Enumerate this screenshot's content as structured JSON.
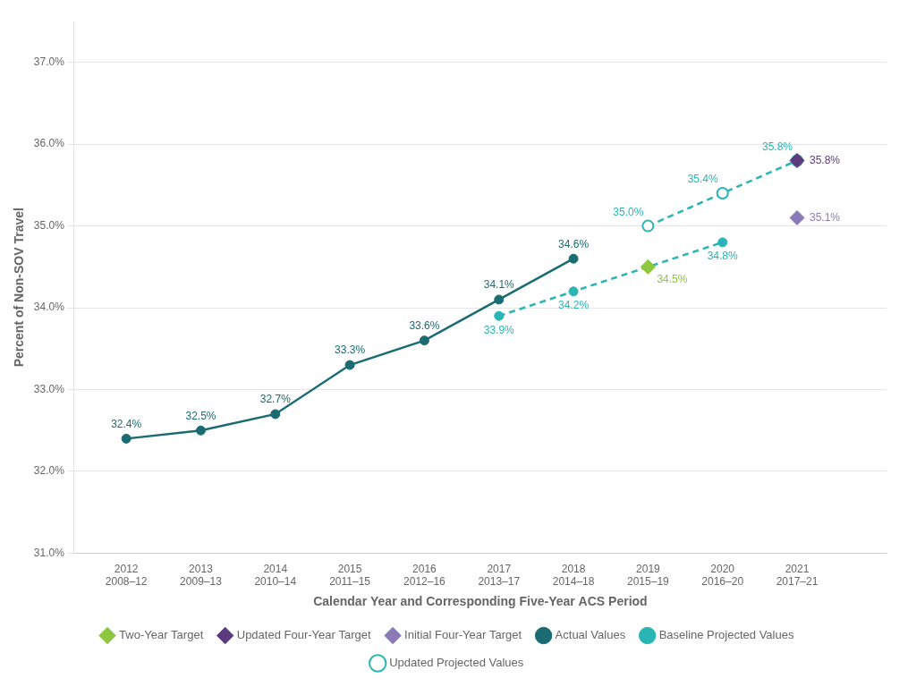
{
  "chart_data": {
    "type": "line",
    "x_label": "Calendar Year and Corresponding Five-Year ACS Period",
    "y_label": "Percent of Non-SOV Travel",
    "xlim": [
      2011.3,
      2022.2
    ],
    "ylim": [
      31.0,
      37.5
    ],
    "xticks": [
      {
        "value": 2012,
        "label": "2012\n2008–12"
      },
      {
        "value": 2013,
        "label": "2013\n2009–13"
      },
      {
        "value": 2014,
        "label": "2014\n2010–14"
      },
      {
        "value": 2015,
        "label": "2015\n2011–15"
      },
      {
        "value": 2016,
        "label": "2016\n2012–16"
      },
      {
        "value": 2017,
        "label": "2017\n2013–17"
      },
      {
        "value": 2018,
        "label": "2018\n2014–18"
      },
      {
        "value": 2019,
        "label": "2019\n2015–19"
      },
      {
        "value": 2020,
        "label": "2020\n2016–20"
      },
      {
        "value": 2021,
        "label": "2021\n2017–21"
      }
    ],
    "yticks": [
      {
        "value": 31.0,
        "label": "31.0%"
      },
      {
        "value": 32.0,
        "label": "32.0%"
      },
      {
        "value": 33.0,
        "label": "33.0%"
      },
      {
        "value": 34.0,
        "label": "34.0%"
      },
      {
        "value": 35.0,
        "label": "35.0%"
      },
      {
        "value": 36.0,
        "label": "36.0%"
      },
      {
        "value": 37.0,
        "label": "37.0%"
      }
    ],
    "grid": "y",
    "legend": "bottom",
    "data_labels": true,
    "series": [
      {
        "name": "Actual Values",
        "color": "#1a6b72",
        "marker": "circle",
        "line_style": "solid",
        "x": [
          2012,
          2013,
          2014,
          2015,
          2016,
          2017,
          2018
        ],
        "values": [
          32.4,
          32.5,
          32.7,
          33.3,
          33.6,
          34.1,
          34.6
        ],
        "value_labels": [
          "32.4%",
          "32.5%",
          "32.7%",
          "33.3%",
          "33.6%",
          "34.1%",
          "34.6%"
        ]
      },
      {
        "name": "Two-Year Target",
        "color": "#8dc63f",
        "marker": "diamond",
        "line_style": "none",
        "x": [
          2019
        ],
        "values": [
          34.5
        ],
        "value_labels": [
          "34.5%"
        ]
      },
      {
        "name": "Baseline Projected Values",
        "color": "#2ab5b5",
        "marker": "circle",
        "line_style": "dashed",
        "x": [
          2017,
          2018,
          2019,
          2020
        ],
        "values": [
          33.9,
          34.2,
          34.5,
          34.8
        ],
        "value_labels": [
          "33.9%",
          "34.2%",
          null,
          "34.8%"
        ]
      },
      {
        "name": "Updated Projected Values",
        "color": "#2ab5b5",
        "marker": "open_circle",
        "line_style": "dashed",
        "x": [
          2019,
          2020,
          2021
        ],
        "values": [
          35.0,
          35.4,
          35.8
        ],
        "value_labels": [
          "35.0%",
          "35.4%",
          "35.8%"
        ]
      },
      {
        "name": "Updated Four-Year Target",
        "color": "#5b3a7e",
        "marker": "diamond",
        "line_style": "none",
        "x": [
          2021
        ],
        "values": [
          35.8
        ],
        "value_labels": [
          "35.8%"
        ]
      },
      {
        "name": "Initial Four-Year Target",
        "color": "#8b7ab8",
        "marker": "diamond",
        "line_style": "none",
        "x": [
          2021
        ],
        "values": [
          35.1
        ],
        "value_labels": [
          "35.1%"
        ]
      }
    ]
  }
}
